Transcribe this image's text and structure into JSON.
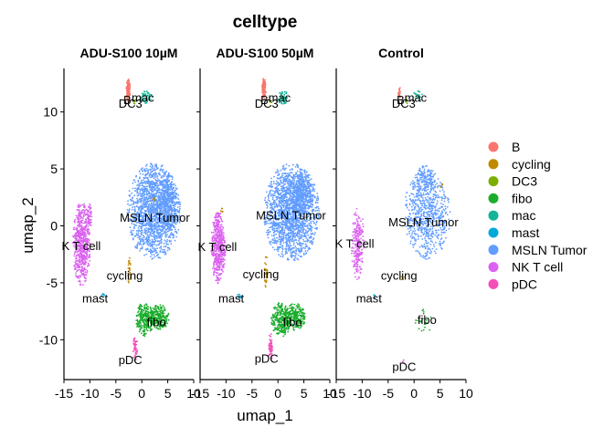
{
  "chart_data": {
    "type": "scatter",
    "title": "celltype",
    "xlabel": "umap_1",
    "ylabel": "umap_2",
    "xlim": [
      -15,
      10
    ],
    "ylim": [
      -13.5,
      13.5
    ],
    "x_ticks": [
      -15,
      -10,
      -5,
      0,
      5,
      10
    ],
    "x_tick_labels": [
      "-15",
      "-10",
      "-5",
      "0",
      "5",
      "10"
    ],
    "y_ticks": [
      -10,
      -5,
      0,
      5,
      10
    ],
    "y_tick_labels": [
      "-10",
      "-5",
      "0",
      "5",
      "10"
    ],
    "legend_position": "right",
    "categories": [
      {
        "name": "B",
        "color": "#F8766D"
      },
      {
        "name": "cycling",
        "color": "#C08A00"
      },
      {
        "name": "DC3",
        "color": "#7CAE00"
      },
      {
        "name": "fibo",
        "color": "#1AAD2C"
      },
      {
        "name": "mac",
        "color": "#13B497"
      },
      {
        "name": "mast",
        "color": "#00A9D9"
      },
      {
        "name": "MSLN Tumor",
        "color": "#619CFF"
      },
      {
        "name": "NK T cell",
        "color": "#DB62F0"
      },
      {
        "name": "pDC",
        "color": "#F34FB7"
      }
    ],
    "facets": [
      {
        "title": "ADU-S100 10µM",
        "labels": [
          {
            "text": "B",
            "x": -2.8,
            "y": 11.0
          },
          {
            "text": "mac",
            "x": 0.2,
            "y": 11.2
          },
          {
            "text": "DC3",
            "x": -2.2,
            "y": 10.7
          },
          {
            "text": "MSLN Tumor",
            "x": 2.5,
            "y": 0.7
          },
          {
            "text": "NK T cell",
            "x": -12.5,
            "y": -1.8
          },
          {
            "text": "cycling",
            "x": -3.3,
            "y": -4.4
          },
          {
            "text": "mast",
            "x": -9.0,
            "y": -6.4
          },
          {
            "text": "fibo",
            "x": 2.8,
            "y": -8.5
          },
          {
            "text": "pDC",
            "x": -2.2,
            "y": -11.8
          }
        ],
        "clusters": [
          {
            "cat": "MSLN Tumor",
            "cx": 2.3,
            "cy": 1.3,
            "rx": 5.2,
            "ry": 4.3,
            "n": 1600
          },
          {
            "cat": "MSLN Tumor",
            "cx": 4.9,
            "cy": 1.9,
            "rx": 2.0,
            "ry": 3.0,
            "n": 350
          },
          {
            "cat": "NK T cell",
            "cx": -11.6,
            "cy": -1.6,
            "rx": 1.7,
            "ry": 3.7,
            "n": 600
          },
          {
            "cat": "NK T cell",
            "cx": -10.1,
            "cy": 0.8,
            "rx": 0.5,
            "ry": 1.2,
            "n": 60
          },
          {
            "cat": "fibo",
            "cx": 0.6,
            "cy": -8.2,
            "rx": 1.8,
            "ry": 1.5,
            "n": 260
          },
          {
            "cat": "fibo",
            "cx": 3.4,
            "cy": -8.0,
            "rx": 1.9,
            "ry": 1.1,
            "n": 230
          },
          {
            "cat": "B",
            "cx": -2.6,
            "cy": 11.9,
            "rx": 0.4,
            "ry": 1.1,
            "n": 110
          },
          {
            "cat": "mac",
            "cx": 0.7,
            "cy": 11.3,
            "rx": 1.3,
            "ry": 0.6,
            "n": 55
          },
          {
            "cat": "DC3",
            "cx": -1.4,
            "cy": 10.9,
            "rx": 0.3,
            "ry": 0.3,
            "n": 6
          },
          {
            "cat": "cycling",
            "cx": -2.4,
            "cy": -3.9,
            "rx": 0.3,
            "ry": 1.3,
            "n": 28
          },
          {
            "cat": "cycling",
            "cx": 2.2,
            "cy": 2.3,
            "rx": 0.3,
            "ry": 0.3,
            "n": 6
          },
          {
            "cat": "mast",
            "cx": -7.5,
            "cy": -6.1,
            "rx": 0.3,
            "ry": 0.3,
            "n": 8
          },
          {
            "cat": "pDC",
            "cx": -1.3,
            "cy": -10.8,
            "rx": 0.5,
            "ry": 1.2,
            "n": 45
          }
        ]
      },
      {
        "title": "ADU-S100 50µM",
        "labels": [
          {
            "text": "B",
            "x": -2.6,
            "y": 11.0
          },
          {
            "text": "mac",
            "x": 0.3,
            "y": 11.2
          },
          {
            "text": "DC3",
            "x": -2.2,
            "y": 10.7
          },
          {
            "text": "MSLN Tumor",
            "x": 2.5,
            "y": 0.9
          },
          {
            "text": "NK T cell",
            "x": -12.5,
            "y": -1.9
          },
          {
            "text": "cycling",
            "x": -3.3,
            "y": -4.3
          },
          {
            "text": "mast",
            "x": -9.0,
            "y": -6.4
          },
          {
            "text": "fibo",
            "x": 2.8,
            "y": -8.5
          },
          {
            "text": "pDC",
            "x": -2.2,
            "y": -11.7
          }
        ],
        "clusters": [
          {
            "cat": "MSLN Tumor",
            "cx": 2.6,
            "cy": 1.2,
            "rx": 5.4,
            "ry": 4.3,
            "n": 1800
          },
          {
            "cat": "MSLN Tumor",
            "cx": 4.5,
            "cy": 3.0,
            "rx": 2.2,
            "ry": 2.0,
            "n": 300
          },
          {
            "cat": "NK T cell",
            "cx": -11.5,
            "cy": -1.9,
            "rx": 1.4,
            "ry": 3.2,
            "n": 500
          },
          {
            "cat": "fibo",
            "cx": 0.6,
            "cy": -8.2,
            "rx": 1.9,
            "ry": 1.6,
            "n": 270
          },
          {
            "cat": "fibo",
            "cx": 3.3,
            "cy": -8.0,
            "rx": 2.0,
            "ry": 1.2,
            "n": 240
          },
          {
            "cat": "B",
            "cx": -2.7,
            "cy": 12.0,
            "rx": 0.4,
            "ry": 1.0,
            "n": 100
          },
          {
            "cat": "mac",
            "cx": 0.9,
            "cy": 11.3,
            "rx": 1.3,
            "ry": 0.6,
            "n": 55
          },
          {
            "cat": "DC3",
            "cx": -1.3,
            "cy": 10.8,
            "rx": 0.3,
            "ry": 0.3,
            "n": 6
          },
          {
            "cat": "cycling",
            "cx": -2.3,
            "cy": -4.0,
            "rx": 0.4,
            "ry": 1.4,
            "n": 30
          },
          {
            "cat": "cycling",
            "cx": -10.7,
            "cy": 1.3,
            "rx": 0.3,
            "ry": 0.3,
            "n": 5
          },
          {
            "cat": "mast",
            "cx": -7.4,
            "cy": -6.2,
            "rx": 0.4,
            "ry": 0.3,
            "n": 10
          },
          {
            "cat": "pDC",
            "cx": -1.4,
            "cy": -10.7,
            "rx": 0.5,
            "ry": 1.3,
            "n": 50
          }
        ]
      },
      {
        "title": "Control",
        "labels": [
          {
            "text": "B",
            "x": -2.6,
            "y": 11.0
          },
          {
            "text": "mac",
            "x": 0.3,
            "y": 11.2
          },
          {
            "text": "DC3",
            "x": -2.0,
            "y": 10.7
          },
          {
            "text": "MSLN Tumor",
            "x": 1.8,
            "y": 0.3
          },
          {
            "text": "NK T cell",
            "x": -12.3,
            "y": -1.6
          },
          {
            "text": "cycling",
            "x": -2.9,
            "y": -4.4
          },
          {
            "text": "mast",
            "x": -8.7,
            "y": -6.4
          },
          {
            "text": "fibo",
            "x": 2.5,
            "y": -8.3
          },
          {
            "text": "pDC",
            "x": -1.9,
            "y": -12.4
          }
        ],
        "clusters": [
          {
            "cat": "MSLN Tumor",
            "cx": 2.5,
            "cy": 1.0,
            "rx": 4.5,
            "ry": 4.0,
            "n": 700
          },
          {
            "cat": "MSLN Tumor",
            "cx": 2.0,
            "cy": 4.0,
            "rx": 2.0,
            "ry": 1.5,
            "n": 120
          },
          {
            "cat": "NK T cell",
            "cx": -10.8,
            "cy": -1.6,
            "rx": 1.3,
            "ry": 3.2,
            "n": 230
          },
          {
            "cat": "fibo",
            "cx": 2.0,
            "cy": -8.3,
            "rx": 1.8,
            "ry": 1.2,
            "n": 24
          },
          {
            "cat": "B",
            "cx": -2.8,
            "cy": 11.6,
            "rx": 0.3,
            "ry": 0.6,
            "n": 20
          },
          {
            "cat": "mac",
            "cx": 0.7,
            "cy": 11.4,
            "rx": 1.0,
            "ry": 0.5,
            "n": 22
          },
          {
            "cat": "DC3",
            "cx": -1.4,
            "cy": 10.9,
            "rx": 0.3,
            "ry": 0.3,
            "n": 4
          },
          {
            "cat": "cycling",
            "cx": -2.2,
            "cy": -4.6,
            "rx": 0.3,
            "ry": 0.6,
            "n": 6
          },
          {
            "cat": "cycling",
            "cx": 5.3,
            "cy": 3.5,
            "rx": 0.3,
            "ry": 0.3,
            "n": 4
          },
          {
            "cat": "mast",
            "cx": -7.6,
            "cy": -6.2,
            "rx": 0.2,
            "ry": 0.2,
            "n": 3
          },
          {
            "cat": "pDC",
            "cx": -1.9,
            "cy": -11.9,
            "rx": 0.3,
            "ry": 0.3,
            "n": 3
          }
        ]
      }
    ]
  }
}
